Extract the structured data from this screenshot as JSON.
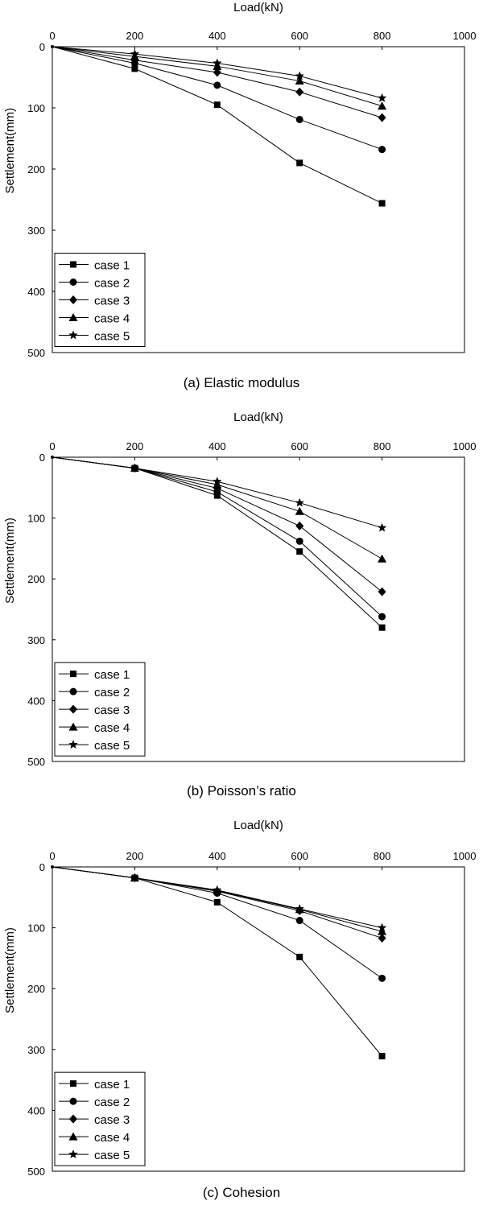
{
  "chart_data": [
    {
      "type": "line",
      "caption": "(a)  Elastic modulus",
      "xlabel": "Load(kN)",
      "ylabel": "Settlement(mm)",
      "xlim": [
        0,
        1000
      ],
      "ylim": [
        0,
        500
      ],
      "y_inverted": true,
      "x_axis_position": "top",
      "x_ticks": [
        0,
        200,
        400,
        600,
        800,
        1000
      ],
      "y_ticks": [
        0,
        100,
        200,
        300,
        400,
        500
      ],
      "grid": false,
      "legend_position": "bottom-left",
      "x": [
        0,
        200,
        400,
        600,
        800
      ],
      "series": [
        {
          "name": "case 1",
          "marker": "square",
          "values": [
            0,
            36,
            95,
            190,
            256
          ]
        },
        {
          "name": "case 2",
          "marker": "circle",
          "values": [
            0,
            27,
            63,
            119,
            168
          ]
        },
        {
          "name": "case 3",
          "marker": "diamond",
          "values": [
            0,
            22,
            42,
            74,
            116
          ]
        },
        {
          "name": "case 4",
          "marker": "triangle",
          "values": [
            0,
            16,
            32,
            56,
            97
          ]
        },
        {
          "name": "case 5",
          "marker": "star",
          "values": [
            0,
            12,
            27,
            48,
            84
          ]
        }
      ]
    },
    {
      "type": "line",
      "caption": "(b)  Poisson’s ratio",
      "xlabel": "Load(kN)",
      "ylabel": "Settlement(mm)",
      "xlim": [
        0,
        1000
      ],
      "ylim": [
        0,
        500
      ],
      "y_inverted": true,
      "x_axis_position": "top",
      "x_ticks": [
        0,
        200,
        400,
        600,
        800,
        1000
      ],
      "y_ticks": [
        0,
        100,
        200,
        300,
        400,
        500
      ],
      "grid": false,
      "legend_position": "bottom-left",
      "x": [
        0,
        200,
        400,
        600,
        800
      ],
      "series": [
        {
          "name": "case 1",
          "marker": "square",
          "values": [
            0,
            18,
            63,
            155,
            280
          ]
        },
        {
          "name": "case 2",
          "marker": "circle",
          "values": [
            0,
            18,
            57,
            138,
            262
          ]
        },
        {
          "name": "case 3",
          "marker": "diamond",
          "values": [
            0,
            18,
            51,
            113,
            221
          ]
        },
        {
          "name": "case 4",
          "marker": "triangle",
          "values": [
            0,
            18,
            45,
            89,
            167
          ]
        },
        {
          "name": "case 5",
          "marker": "star",
          "values": [
            0,
            18,
            40,
            75,
            116
          ]
        }
      ]
    },
    {
      "type": "line",
      "caption": "(c)  Cohesion",
      "xlabel": "Load(kN)",
      "ylabel": "Settlement(mm)",
      "xlim": [
        0,
        1000
      ],
      "ylim": [
        0,
        500
      ],
      "y_inverted": true,
      "x_axis_position": "top",
      "x_ticks": [
        0,
        200,
        400,
        600,
        800,
        1000
      ],
      "y_ticks": [
        0,
        100,
        200,
        300,
        400,
        500
      ],
      "grid": false,
      "legend_position": "bottom-left",
      "x": [
        0,
        200,
        400,
        600,
        800
      ],
      "series": [
        {
          "name": "case 1",
          "marker": "square",
          "values": [
            0,
            18,
            58,
            148,
            311
          ]
        },
        {
          "name": "case 2",
          "marker": "circle",
          "values": [
            0,
            18,
            43,
            88,
            183
          ]
        },
        {
          "name": "case 3",
          "marker": "diamond",
          "values": [
            0,
            18,
            40,
            72,
            117
          ]
        },
        {
          "name": "case 4",
          "marker": "triangle",
          "values": [
            0,
            18,
            39,
            70,
            106
          ]
        },
        {
          "name": "case 5",
          "marker": "star",
          "values": [
            0,
            18,
            38,
            69,
            100
          ]
        }
      ]
    }
  ]
}
